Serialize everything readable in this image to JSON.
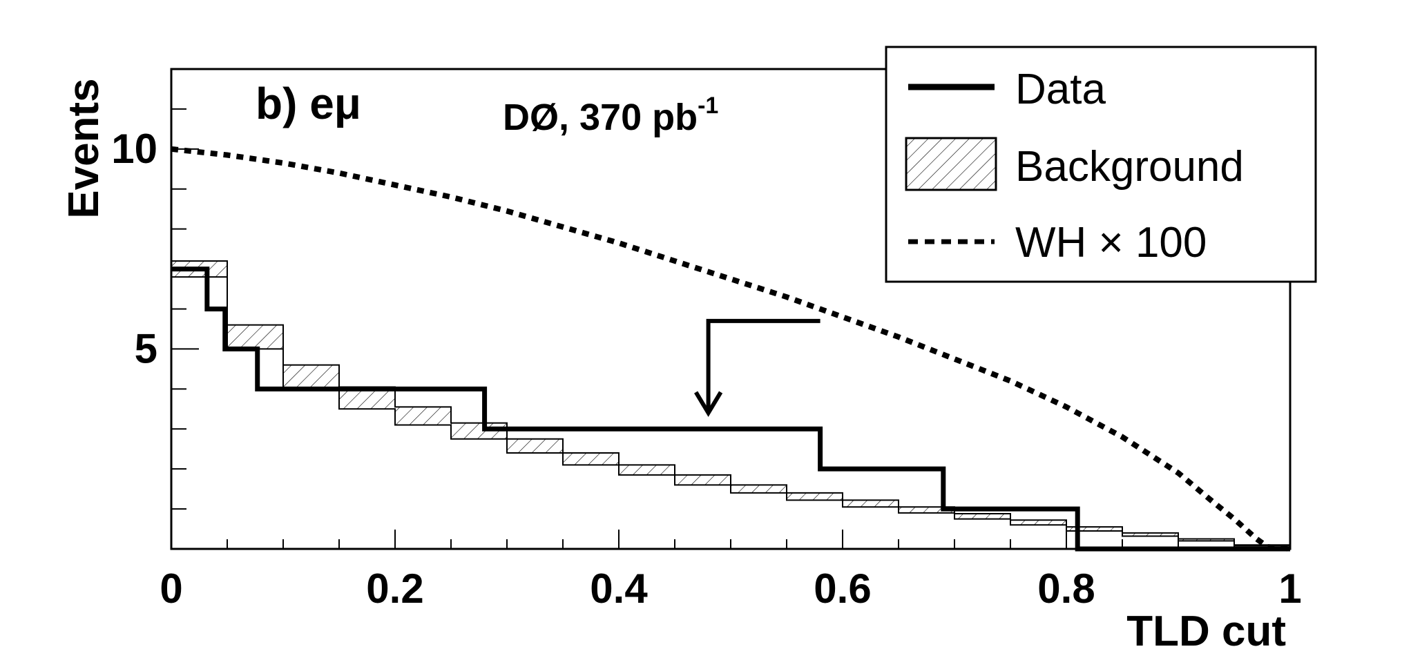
{
  "chart_data": {
    "type": "line",
    "title": "",
    "xlabel": "TLD cut",
    "ylabel": "Events",
    "xlim": [
      0,
      1
    ],
    "ylim": [
      0,
      12
    ],
    "x_ticks": [
      "0",
      "0.2",
      "0.4",
      "0.6",
      "0.8",
      "1"
    ],
    "x_tick_values": [
      0,
      0.2,
      0.4,
      0.6,
      0.8,
      1
    ],
    "y_ticks": [
      "5",
      "10"
    ],
    "y_tick_values": [
      5,
      10
    ],
    "panel_label": "b) eμ",
    "experiment_label": "DØ, 370 pb",
    "experiment_superscript": "-1",
    "legend_position": "top-right",
    "series": [
      {
        "name": "Data",
        "style": "solid-thick",
        "steps": [
          [
            0,
            0.032,
            7
          ],
          [
            0.032,
            0.048,
            6
          ],
          [
            0.048,
            0.077,
            5
          ],
          [
            0.077,
            0.28,
            4
          ],
          [
            0.28,
            0.58,
            3
          ],
          [
            0.58,
            0.69,
            2
          ],
          [
            0.69,
            0.81,
            1
          ],
          [
            0.81,
            1.0,
            0
          ]
        ]
      },
      {
        "name": "Background",
        "style": "hatched-band",
        "x": [
          0,
          0.05,
          0.1,
          0.15,
          0.2,
          0.25,
          0.3,
          0.35,
          0.4,
          0.45,
          0.5,
          0.55,
          0.6,
          0.65,
          0.7,
          0.75,
          0.8,
          0.85,
          0.9,
          0.95,
          1.0
        ],
        "lower": [
          6.8,
          5.0,
          4.0,
          3.5,
          3.1,
          2.75,
          2.4,
          2.1,
          1.85,
          1.6,
          1.4,
          1.22,
          1.05,
          0.9,
          0.75,
          0.6,
          0.45,
          0.32,
          0.2,
          0.08,
          0.0
        ],
        "upper": [
          7.2,
          5.6,
          4.6,
          4.05,
          3.55,
          3.15,
          2.75,
          2.4,
          2.1,
          1.85,
          1.6,
          1.4,
          1.22,
          1.05,
          0.88,
          0.72,
          0.55,
          0.4,
          0.25,
          0.1,
          0.0
        ]
      },
      {
        "name": "WH × 100",
        "style": "dotted",
        "x": [
          0,
          0.05,
          0.1,
          0.15,
          0.2,
          0.25,
          0.3,
          0.35,
          0.4,
          0.45,
          0.5,
          0.55,
          0.6,
          0.65,
          0.7,
          0.75,
          0.8,
          0.85,
          0.9,
          0.93,
          0.95,
          0.97,
          0.98,
          1.0
        ],
        "values": [
          10.0,
          9.85,
          9.65,
          9.4,
          9.1,
          8.8,
          8.45,
          8.05,
          7.65,
          7.2,
          6.75,
          6.3,
          5.8,
          5.3,
          4.75,
          4.2,
          3.55,
          2.8,
          1.9,
          1.2,
          0.75,
          0.25,
          0.05,
          0.0
        ]
      }
    ],
    "annotation": {
      "type": "cut-arrow",
      "x": 0.48,
      "y_top": 5.7,
      "y_tip": 3.4,
      "x_end": 0.58
    },
    "colors": {
      "line": "#000000",
      "background": "#ffffff"
    }
  }
}
